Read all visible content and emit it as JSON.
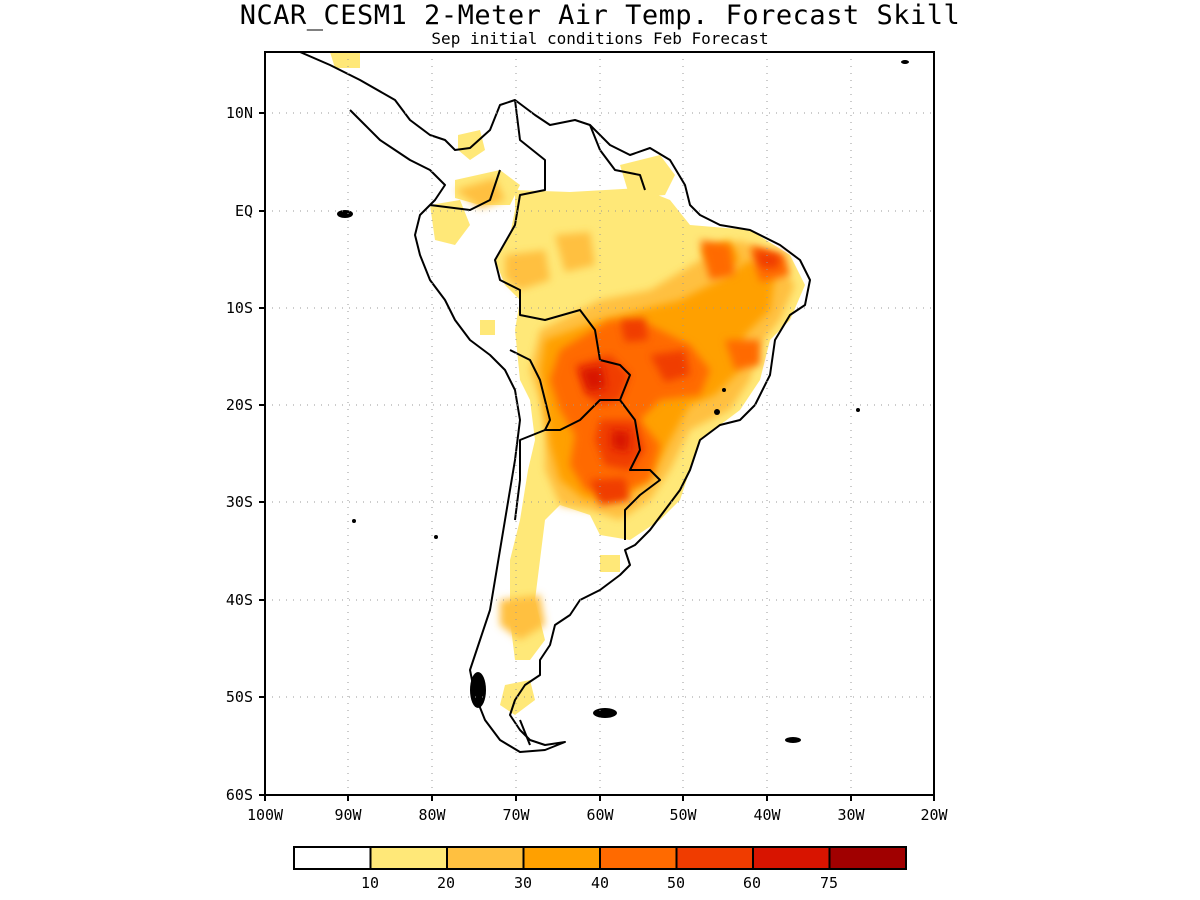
{
  "header": {
    "title": "NCAR_CESM1 2-Meter Air Temp. Forecast Skill",
    "subtitle": "Sep initial conditions  Feb Forecast"
  },
  "map": {
    "region": "South America",
    "lon_range": [
      -100,
      -20
    ],
    "lat_range": [
      -60,
      6
    ],
    "x_ticks": [
      "100W",
      "90W",
      "80W",
      "70W",
      "60W",
      "50W",
      "40W",
      "30W",
      "20W"
    ],
    "y_ticks": [
      "10N",
      "EQ",
      "10S",
      "20S",
      "30S",
      "40S",
      "50S",
      "60S"
    ],
    "grid": "dotted"
  },
  "colorbar": {
    "labels": [
      "10",
      "20",
      "30",
      "40",
      "50",
      "60",
      "75"
    ],
    "colors": [
      "#ffffff",
      "#ffe878",
      "#ffc040",
      "#ffa000",
      "#ff6a00",
      "#f03c00",
      "#d81400",
      "#a00000"
    ]
  }
}
